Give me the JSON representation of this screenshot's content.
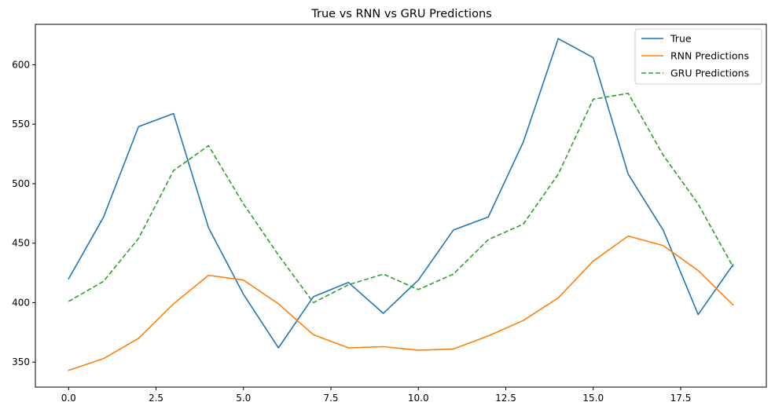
{
  "chart_data": {
    "type": "line",
    "title": "True vs RNN vs GRU Predictions",
    "xlabel": "",
    "ylabel": "",
    "xlim": [
      -0.95,
      19.95
    ],
    "ylim": [
      329,
      634
    ],
    "x_ticks": [
      0.0,
      2.5,
      5.0,
      7.5,
      10.0,
      12.5,
      15.0,
      17.5
    ],
    "x_tick_labels": [
      "0.0",
      "2.5",
      "5.0",
      "7.5",
      "10.0",
      "12.5",
      "15.0",
      "17.5"
    ],
    "y_ticks": [
      350,
      400,
      450,
      500,
      550,
      600
    ],
    "y_tick_labels": [
      "350",
      "400",
      "450",
      "500",
      "550",
      "600"
    ],
    "grid": false,
    "legend_position": "top-right",
    "x": [
      0,
      1,
      2,
      3,
      4,
      5,
      6,
      7,
      8,
      9,
      10,
      11,
      12,
      13,
      14,
      15,
      16,
      17,
      18,
      19
    ],
    "series": [
      {
        "name": "True",
        "color": "#1f77b4",
        "style": "solid",
        "values": [
          420,
          472,
          548,
          559,
          463,
          407,
          362,
          405,
          417,
          391,
          419,
          461,
          472,
          535,
          622,
          606,
          508,
          461,
          390,
          432
        ]
      },
      {
        "name": "RNN Predictions",
        "color": "#ff7f0e",
        "style": "solid",
        "values": [
          343,
          353,
          370,
          399,
          423,
          419,
          399,
          373,
          362,
          363,
          360,
          361,
          372,
          385,
          404,
          435,
          456,
          448,
          427,
          398
        ]
      },
      {
        "name": "GRU Predictions",
        "color": "#2ca02c",
        "style": "dashed",
        "values": [
          401,
          418,
          454,
          511,
          532,
          483,
          440,
          400,
          415,
          424,
          411,
          424,
          453,
          466,
          508,
          571,
          576,
          524,
          483,
          430
        ]
      }
    ]
  }
}
